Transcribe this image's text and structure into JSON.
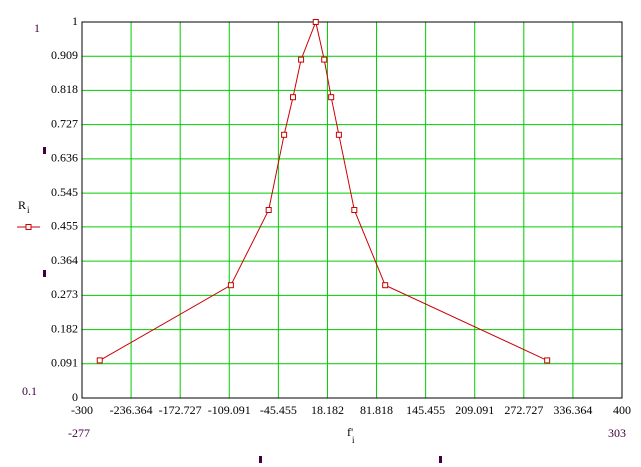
{
  "chart_data": {
    "type": "line",
    "x": [
      -277,
      -107,
      -58,
      -38,
      -26.5,
      -16,
      3,
      14,
      23,
      33,
      53,
      93,
      303
    ],
    "series": [
      {
        "name": "R",
        "name_sub": "i",
        "color": "#cc0000",
        "values": [
          0.1,
          0.3,
          0.5,
          0.7,
          0.8,
          0.9,
          1,
          0.9,
          0.8,
          0.7,
          0.5,
          0.3,
          0.1
        ]
      }
    ],
    "xlabel": "f'",
    "xlabel_sub": "i",
    "xlim": [
      -300,
      400
    ],
    "xticks": [
      -300,
      -236.364,
      -172.727,
      -109.091,
      -45.455,
      18.182,
      81.818,
      145.455,
      209.091,
      272.727,
      336.364,
      400
    ],
    "ylim": [
      0,
      1
    ],
    "yticks": [
      0,
      0.091,
      0.182,
      0.273,
      0.364,
      0.455,
      0.545,
      0.636,
      0.727,
      0.818,
      0.909,
      1
    ],
    "grid": true,
    "grid_color": "#00cc00",
    "corner_labels": {
      "ymax": "1",
      "ymin": "0.1",
      "xmin": "-277",
      "xmax": "303"
    }
  }
}
